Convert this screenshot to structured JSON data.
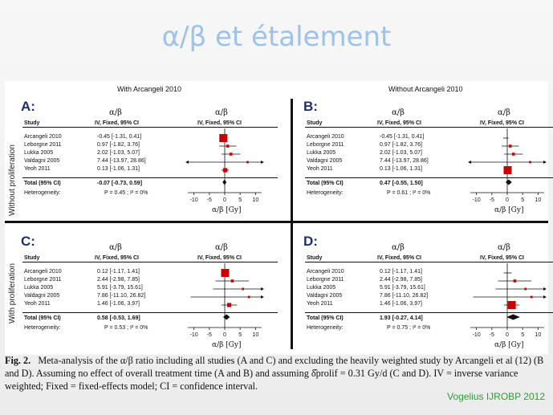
{
  "slide": {
    "title": "α/β et étalement",
    "citation": "Vogelius IJROBP 2012"
  },
  "figure": {
    "col_left": "With Arcangeli 2010",
    "col_right": "Without Arcangeli 2010",
    "row_top": "Without proliferation",
    "row_bottom": "With proliferation",
    "ab_label": "α/β",
    "col_study": "Study",
    "col_ci": "IV, Fixed, 95% CI",
    "heterogeneity_label": "Heterogeneity:",
    "axis_unit_label": "α/β [Gy]",
    "ticks": [
      "-10",
      "-5",
      "0",
      "5",
      "10"
    ],
    "panels": [
      {
        "letter": "A:",
        "studies": [
          {
            "name": "Arcangeli 2010",
            "ci": "-0.45 [-1.31, 0.41]"
          },
          {
            "name": "Leborgne 2011",
            "ci": "0.97 [-1.82, 3.76]"
          },
          {
            "name": "Lukka 2005",
            "ci": "2.02 [-1.03, 5.07]"
          },
          {
            "name": "Valdagni 2005",
            "ci": "7.44 [-13.97, 28.86]"
          },
          {
            "name": "Yeoh 2011",
            "ci": "0.13 [-1.06, 1.31]"
          }
        ],
        "total_label": "Total (95% CI)",
        "total_ci": "-0.07 [-0.73, 0.59]",
        "heterogeneity": "P = 0.45 ; I² = 0%"
      },
      {
        "letter": "B:",
        "studies": [
          {
            "name": "Arcangeli 2010",
            "ci": "-0.45 [-1.31, 0.41]"
          },
          {
            "name": "Leborgne 2011",
            "ci": "0.97 [-1.82, 3.76]"
          },
          {
            "name": "Lukka 2005",
            "ci": "2.02 [-1.03, 5.07]"
          },
          {
            "name": "Valdagni 2005",
            "ci": "7.44 [-13.97, 28.86]"
          },
          {
            "name": "Yeoh 2011",
            "ci": "0.13 [-1.06, 1.31]"
          }
        ],
        "total_label": "Total (95% CI)",
        "total_ci": "0.47 [-0.55, 1.50]",
        "heterogeneity": "P = 0.61 ; I² = 0%"
      },
      {
        "letter": "C:",
        "studies": [
          {
            "name": "Arcangeli 2010",
            "ci": "0.12 [-1.17, 1.41]"
          },
          {
            "name": "Leborgne 2011",
            "ci": "2.44 [-2.98, 7.85]"
          },
          {
            "name": "Lukka 2005",
            "ci": "5.91 [-3.79, 15.61]"
          },
          {
            "name": "Valdagni 2005",
            "ci": "7.86 [-11.10, 26.82]"
          },
          {
            "name": "Yeoh 2011",
            "ci": "1.46 [-1.06, 3.97]"
          }
        ],
        "total_label": "Total (95% CI)",
        "total_ci": "0.58 [-0.53, 1.69]",
        "heterogeneity": "P = 0.53 ; I² = 0%"
      },
      {
        "letter": "D:",
        "studies": [
          {
            "name": "Arcangeli 2010",
            "ci": "0.12 [-1.17, 1.41]"
          },
          {
            "name": "Leborgne 2011",
            "ci": "2.44 [-2.98, 7.85]"
          },
          {
            "name": "Lukka 2005",
            "ci": "5.91 [-3.79, 15.61]"
          },
          {
            "name": "Valdagni 2005",
            "ci": "7.86 [-11.10, 26.82]"
          },
          {
            "name": "Yeoh 2011",
            "ci": "1.46 [-1.06, 3.97]"
          }
        ],
        "total_label": "Total (95% CI)",
        "total_ci": "1.93 [-0.27, 4.14]",
        "heterogeneity": "P = 0.75 ; I² = 0%"
      }
    ]
  },
  "chart_data": [
    {
      "type": "forest",
      "panel": "A",
      "x_axis": "α/β [Gy]",
      "xlim": [
        -12,
        12
      ],
      "studies": [
        {
          "name": "Arcangeli 2010",
          "estimate": -0.45,
          "lo": -1.31,
          "hi": 0.41,
          "weight": 1.0
        },
        {
          "name": "Leborgne 2011",
          "estimate": 0.97,
          "lo": -1.82,
          "hi": 3.76,
          "weight": 0.2
        },
        {
          "name": "Lukka 2005",
          "estimate": 2.02,
          "lo": -1.03,
          "hi": 5.07,
          "weight": 0.2
        },
        {
          "name": "Valdagni 2005",
          "estimate": 7.44,
          "lo": -13.97,
          "hi": 28.86,
          "weight": 0.1
        },
        {
          "name": "Yeoh 2011",
          "estimate": 0.13,
          "lo": -1.06,
          "hi": 1.31,
          "weight": 0.4
        }
      ],
      "total": {
        "estimate": -0.07,
        "lo": -0.73,
        "hi": 0.59
      }
    },
    {
      "type": "forest",
      "panel": "B",
      "x_axis": "α/β [Gy]",
      "xlim": [
        -12,
        12
      ],
      "studies": [
        {
          "name": "Arcangeli 2010",
          "estimate": -0.45,
          "lo": -1.31,
          "hi": 0.41,
          "weight": 0.0
        },
        {
          "name": "Leborgne 2011",
          "estimate": 0.97,
          "lo": -1.82,
          "hi": 3.76,
          "weight": 0.2
        },
        {
          "name": "Lukka 2005",
          "estimate": 2.02,
          "lo": -1.03,
          "hi": 5.07,
          "weight": 0.2
        },
        {
          "name": "Valdagni 2005",
          "estimate": 7.44,
          "lo": -13.97,
          "hi": 28.86,
          "weight": 0.1
        },
        {
          "name": "Yeoh 2011",
          "estimate": 0.13,
          "lo": -1.06,
          "hi": 1.31,
          "weight": 1.0
        }
      ],
      "total": {
        "estimate": 0.47,
        "lo": -0.55,
        "hi": 1.5
      }
    },
    {
      "type": "forest",
      "panel": "C",
      "x_axis": "α/β [Gy]",
      "xlim": [
        -12,
        12
      ],
      "studies": [
        {
          "name": "Arcangeli 2010",
          "estimate": 0.12,
          "lo": -1.17,
          "hi": 1.41,
          "weight": 1.0
        },
        {
          "name": "Leborgne 2011",
          "estimate": 2.44,
          "lo": -2.98,
          "hi": 7.85,
          "weight": 0.2
        },
        {
          "name": "Lukka 2005",
          "estimate": 5.91,
          "lo": -3.79,
          "hi": 15.61,
          "weight": 0.1
        },
        {
          "name": "Valdagni 2005",
          "estimate": 7.86,
          "lo": -11.1,
          "hi": 26.82,
          "weight": 0.1
        },
        {
          "name": "Yeoh 2011",
          "estimate": 1.46,
          "lo": -1.06,
          "hi": 3.97,
          "weight": 0.4
        }
      ],
      "total": {
        "estimate": 0.58,
        "lo": -0.53,
        "hi": 1.69
      }
    },
    {
      "type": "forest",
      "panel": "D",
      "x_axis": "α/β [Gy]",
      "xlim": [
        -12,
        12
      ],
      "studies": [
        {
          "name": "Arcangeli 2010",
          "estimate": 0.12,
          "lo": -1.17,
          "hi": 1.41,
          "weight": 0.0
        },
        {
          "name": "Leborgne 2011",
          "estimate": 2.44,
          "lo": -2.98,
          "hi": 7.85,
          "weight": 0.2
        },
        {
          "name": "Lukka 2005",
          "estimate": 5.91,
          "lo": -3.79,
          "hi": 15.61,
          "weight": 0.1
        },
        {
          "name": "Valdagni 2005",
          "estimate": 7.86,
          "lo": -11.1,
          "hi": 26.82,
          "weight": 0.1
        },
        {
          "name": "Yeoh 2011",
          "estimate": 1.46,
          "lo": -1.06,
          "hi": 3.97,
          "weight": 1.0
        }
      ],
      "total": {
        "estimate": 1.93,
        "lo": -0.27,
        "hi": 4.14
      }
    }
  ],
  "caption": {
    "label": "Fig. 2.",
    "line1": "Meta-analysis of the α/β ratio including all studies (A and C) and excluding the heavily weighted study by Arcangeli et al (12) (B",
    "line2": "and D). Assuming no effect of overall treatment time (A and B) and assuming δ̂prolif = 0.31 Gy/d (C and D). IV = inverse variance",
    "line3": "weighted; Fixed = fixed-effects model; CI = confidence interval."
  },
  "colors": {
    "title": "#9ec3ea",
    "marker": "#cc0000",
    "panel_letter": "#1d2c78",
    "citation": "#2e9a3b"
  }
}
